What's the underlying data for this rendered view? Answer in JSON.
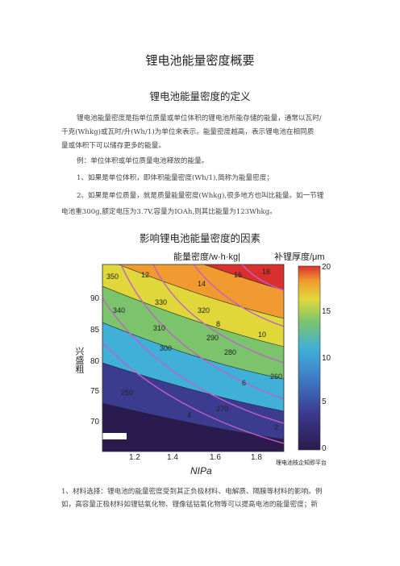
{
  "title": "锂电池能量密度概要",
  "section1": {
    "heading": "锂电池能量密度的定义",
    "paragraphs": [
      [
        "锂电池能量密度是指单位质量或单位体积的锂电池所能存储的能量，通常以瓦时/",
        "千克(Whkg)或瓦时/升(Wh/1)为单位来表示。能量密度越高，表示锂电池在相同质",
        "量或体积下可以储存更多的能量。"
      ],
      [
        "例：单位体积或单位质量电池释放的能量。"
      ],
      [
        "1、如果是单位体积，即体积能量密度(Wh/1),简称为能量密度；"
      ],
      [
        "2、如果是单位质量，就是质量能量密度(Whkg),很多地方也叫比能量。如一节锂",
        "电池重300g,额定电压为3.7V,容量为IOAh,则其比能量为123Whkg。"
      ]
    ]
  },
  "section2": {
    "heading": "影响锂电池能量密度的因素",
    "figure": {
      "top_left_label": "能量密度/w·h·kg|",
      "top_right_label": "补锂厚度/μm",
      "y_label": "兴盛粗",
      "x_label": "NIPa",
      "xticks": [
        "1.2",
        "1.4",
        "1.6",
        "1.8"
      ],
      "yticks": [
        "90",
        "85",
        "80",
        "75",
        "70"
      ],
      "colorbar_ticks": [
        "20",
        "15",
        "10",
        "5",
        "0"
      ],
      "contour_labels": [
        "350",
        "12",
        "330",
        "14",
        "16",
        "18",
        "340",
        "320",
        "310",
        "290",
        "300",
        "280",
        "270",
        "260",
        "250",
        "8",
        "10",
        "4",
        "2",
        "6"
      ],
      "watermark": "理电池枝企知即平台"
    },
    "paragraphs": [
      [
        "1、材料选择：锂电池的能量密度受到其正负极材料、电解质、隔膜等材料的影响。例",
        "如，高容量正极材料如锂钴氧化物、锂像锰钴氧化物等可以提高电池的能量密度；新"
      ]
    ]
  }
}
